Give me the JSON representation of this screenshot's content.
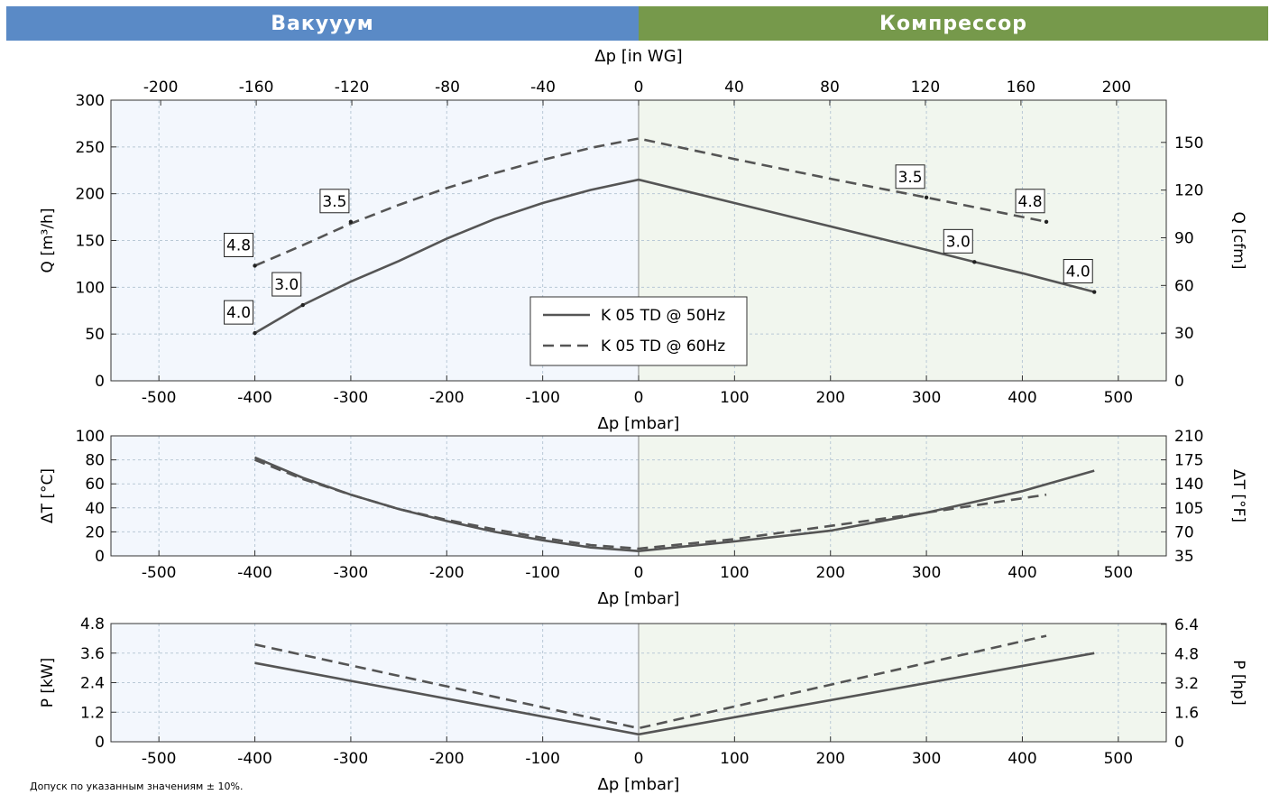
{
  "colors": {
    "vacuum_banner": "#5a8ac6",
    "compressor_banner": "#76994b",
    "vacuum_bg": "#f3f7fd",
    "compressor_bg": "#f1f6ee",
    "line": "#555555",
    "grid": "#b9c9d6"
  },
  "banners": {
    "left": "Вакууум",
    "right": "Компрессор"
  },
  "footnote": "Допуск по указанным значениям ± 10%.",
  "chart_data": [
    {
      "type": "line",
      "panel": "flow",
      "xlabel": "Δp [mbar]",
      "x_top_label": "Δp [in WG]",
      "ylabel": "Q [m³/h]",
      "y2label": "Q [cfm]",
      "xlim": [
        -550,
        550
      ],
      "ylim": [
        0,
        300
      ],
      "x_ticks": [
        -500,
        -400,
        -300,
        -200,
        -100,
        0,
        100,
        200,
        300,
        400,
        500
      ],
      "x_top_ticks": [
        -200,
        -160,
        -120,
        -80,
        -40,
        0,
        40,
        80,
        120,
        160,
        200
      ],
      "y_ticks": [
        0,
        50,
        100,
        150,
        200,
        250,
        300
      ],
      "y2_ticks": [
        0,
        30,
        60,
        90,
        120,
        150
      ],
      "legend": {
        "placement": "center-bottom",
        "entries": [
          "K 05 TD @ 50Hz",
          "K 05 TD @ 60Hz"
        ]
      },
      "series": [
        {
          "name": "K 05 TD @ 50Hz",
          "style": "solid",
          "x": [
            -400,
            -350,
            -300,
            -250,
            -200,
            -150,
            -100,
            -50,
            0,
            100,
            200,
            300,
            350,
            400,
            475
          ],
          "y": [
            51,
            81,
            106,
            128,
            152,
            173,
            190,
            204,
            215,
            190,
            165,
            140,
            127,
            115,
            95
          ]
        },
        {
          "name": "K 05 TD @ 60Hz",
          "style": "dashed",
          "x": [
            -400,
            -350,
            -300,
            -250,
            -200,
            -150,
            -100,
            -50,
            0,
            100,
            200,
            300,
            425
          ],
          "y": [
            123,
            145,
            168,
            188,
            206,
            222,
            236,
            249,
            259,
            237,
            216,
            196,
            170
          ]
        }
      ],
      "annotations": [
        {
          "text": "4.0",
          "x": -400,
          "y": 51
        },
        {
          "text": "3.0",
          "x": -350,
          "y": 81
        },
        {
          "text": "4.8",
          "x": -400,
          "y": 123
        },
        {
          "text": "3.5",
          "x": -300,
          "y": 170
        },
        {
          "text": "3.5",
          "x": 300,
          "y": 196
        },
        {
          "text": "4.8",
          "x": 425,
          "y": 170
        },
        {
          "text": "3.0",
          "x": 350,
          "y": 127
        },
        {
          "text": "4.0",
          "x": 475,
          "y": 95
        }
      ]
    },
    {
      "type": "line",
      "panel": "temperature",
      "xlabel": "Δp [mbar]",
      "ylabel": "ΔT [°C]",
      "y2label": "ΔT [°F]",
      "xlim": [
        -550,
        550
      ],
      "ylim": [
        0,
        100
      ],
      "x_ticks": [
        -500,
        -400,
        -300,
        -200,
        -100,
        0,
        100,
        200,
        300,
        400,
        500
      ],
      "y_ticks": [
        0,
        20,
        40,
        60,
        80,
        100
      ],
      "y2_ticks": [
        35,
        70,
        105,
        140,
        175,
        210
      ],
      "series": [
        {
          "name": "K 05 TD @ 50Hz",
          "style": "solid",
          "x": [
            -400,
            -350,
            -300,
            -250,
            -200,
            -150,
            -100,
            -50,
            0,
            100,
            200,
            300,
            400,
            475
          ],
          "y": [
            82,
            65,
            51,
            39,
            29,
            20,
            13,
            7,
            4,
            12,
            21,
            36,
            54,
            71
          ]
        },
        {
          "name": "K 05 TD @ 60Hz",
          "style": "dashed",
          "x": [
            -400,
            -350,
            -300,
            -250,
            -200,
            -150,
            -100,
            -50,
            0,
            100,
            200,
            300,
            425
          ],
          "y": [
            80,
            64,
            51,
            39,
            30,
            22,
            15,
            9,
            6,
            14,
            25,
            36,
            51
          ]
        }
      ]
    },
    {
      "type": "line",
      "panel": "power",
      "xlabel": "Δp [mbar]",
      "ylabel": "P [kW]",
      "y2label": "P [hp]",
      "xlim": [
        -550,
        550
      ],
      "ylim": [
        0,
        4.8
      ],
      "x_ticks": [
        -500,
        -400,
        -300,
        -200,
        -100,
        0,
        100,
        200,
        300,
        400,
        500
      ],
      "y_ticks": [
        0,
        1.2,
        2.4,
        3.6,
        4.8
      ],
      "y_tick_labels": [
        "0",
        "1.2",
        "2.4",
        "3.6",
        "4.8"
      ],
      "y2_ticks": [
        0,
        1.6,
        3.2,
        4.8,
        6.4
      ],
      "y2_tick_labels": [
        "0",
        "1.6",
        "3.2",
        "4.8",
        "6.4"
      ],
      "series": [
        {
          "name": "K 05 TD @ 50Hz",
          "style": "solid",
          "x": [
            -400,
            0,
            475
          ],
          "y": [
            3.2,
            0.3,
            3.6
          ]
        },
        {
          "name": "K 05 TD @ 60Hz",
          "style": "dashed",
          "x": [
            -400,
            0,
            425
          ],
          "y": [
            3.95,
            0.55,
            4.3
          ]
        }
      ]
    }
  ]
}
